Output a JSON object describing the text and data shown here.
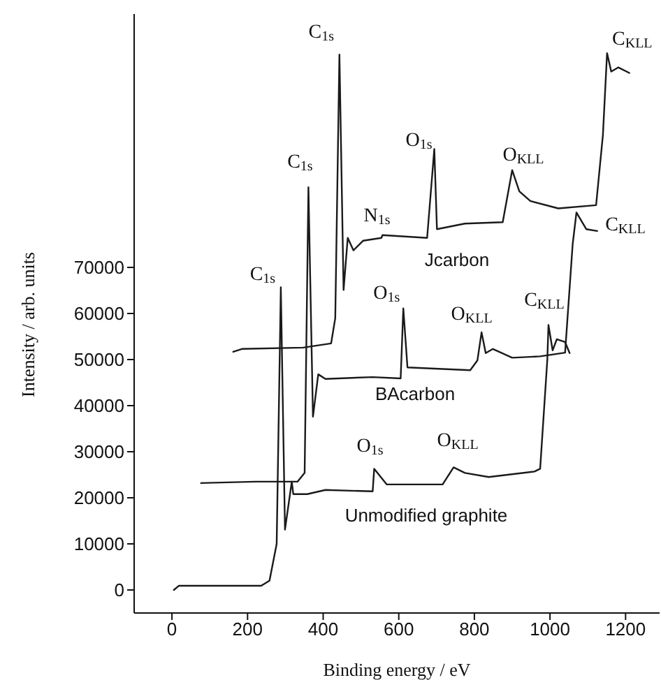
{
  "chart_data": {
    "type": "line",
    "xlabel": "Binding energy / eV",
    "ylabel": "Intensity / arb. units",
    "xlim": [
      -100,
      1290
    ],
    "ylim": [
      -5000,
      125000
    ],
    "xticks": [
      0,
      200,
      400,
      600,
      800,
      1000,
      1200
    ],
    "yticks": [
      0,
      10000,
      20000,
      30000,
      40000,
      50000,
      60000,
      70000
    ],
    "grid": false,
    "legend": false,
    "marker": "none",
    "line_style": "solid",
    "series": [
      {
        "name": "Unmodified graphite",
        "color": "#1a1a1a",
        "x": [
          5,
          18,
          236,
          258,
          277,
          288,
          299,
          317,
          321,
          358,
          406,
          531,
          535,
          568,
          716,
          745,
          775,
          838,
          959,
          974,
          993,
          996,
          1007,
          1018,
          1040,
          1052
        ],
        "values": [
          0,
          900,
          900,
          2000,
          10000,
          65700,
          13100,
          23500,
          20800,
          20800,
          21700,
          21400,
          26300,
          22900,
          22900,
          26600,
          25400,
          24500,
          25700,
          26300,
          50000,
          57500,
          52000,
          54400,
          53800,
          51400
        ]
      },
      {
        "name": "BAcarbon",
        "color": "#1a1a1a",
        "x": [
          77,
          221,
          332,
          351,
          361,
          373,
          387,
          406,
          531,
          605,
          612,
          623,
          789,
          808,
          819,
          830,
          849,
          900,
          974,
          1040,
          1060,
          1070,
          1096,
          1125
        ],
        "values": [
          23200,
          23500,
          23500,
          25400,
          87400,
          37600,
          46800,
          45800,
          46200,
          45900,
          61100,
          48300,
          47700,
          49800,
          55900,
          51400,
          52300,
          50400,
          50700,
          51500,
          75000,
          81900,
          78300,
          77900
        ]
      },
      {
        "name": "Jcarbon",
        "color": "#1a1a1a",
        "x": [
          162,
          185,
          347,
          421,
          424,
          432,
          443,
          454,
          465,
          480,
          506,
          554,
          557,
          675,
          694,
          701,
          775,
          875,
          900,
          919,
          948,
          1022,
          1122,
          1140,
          1151,
          1162,
          1181,
          1210
        ],
        "values": [
          51700,
          52300,
          52600,
          53500,
          55000,
          59000,
          116200,
          65100,
          76400,
          73700,
          75800,
          76400,
          77000,
          76400,
          95700,
          78300,
          79500,
          79800,
          91100,
          86500,
          84400,
          82800,
          83500,
          98700,
          116500,
          112500,
          113400,
          112200
        ]
      }
    ],
    "annotations": [
      {
        "text": "C$_{1s}$",
        "x": 288,
        "y": 65700
      },
      {
        "text": "O$_{1s}$",
        "x": 535,
        "y": 26300
      },
      {
        "text": "O$_{KLL}$",
        "x": 745,
        "y": 26600
      },
      {
        "text": "C$_{KLL}$",
        "x": 996,
        "y": 57500
      },
      {
        "text": "C$_{1s}$",
        "x": 361,
        "y": 87400
      },
      {
        "text": "O$_{1s}$",
        "x": 612,
        "y": 61100
      },
      {
        "text": "O$_{KLL}$",
        "x": 819,
        "y": 55900
      },
      {
        "text": "C$_{KLL}$",
        "x": 1070,
        "y": 81900
      },
      {
        "text": "C$_{1s}$",
        "x": 443,
        "y": 116200
      },
      {
        "text": "N$_{1s}$",
        "x": 557,
        "y": 77000
      },
      {
        "text": "O$_{1s}$",
        "x": 694,
        "y": 95700
      },
      {
        "text": "O$_{KLL}$",
        "x": 900,
        "y": 91100
      },
      {
        "text": "C$_{KLL}$",
        "x": 1151,
        "y": 116500
      }
    ]
  }
}
